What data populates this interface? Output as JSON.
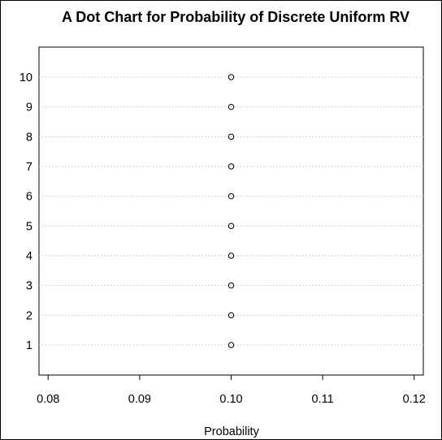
{
  "chart_data": {
    "type": "scatter",
    "title": "A Dot Chart for Probability of Discrete Uniform RV",
    "xlabel": "Probability",
    "ylabel": "",
    "categories": [
      "1",
      "2",
      "3",
      "4",
      "5",
      "6",
      "7",
      "8",
      "9",
      "10"
    ],
    "values": [
      0.1,
      0.1,
      0.1,
      0.1,
      0.1,
      0.1,
      0.1,
      0.1,
      0.1,
      0.1
    ],
    "x_ticks": [
      0.08,
      0.09,
      0.1,
      0.11,
      0.12
    ],
    "x_tick_labels": [
      "0.08",
      "0.09",
      "0.10",
      "0.11",
      "0.12"
    ],
    "xlim": [
      0.079,
      0.121
    ],
    "grid": "dotted horizontal lines at each category",
    "legend": "none",
    "colors": {
      "points": "#000000",
      "grid": "#bebebe",
      "axes": "#000000"
    }
  }
}
